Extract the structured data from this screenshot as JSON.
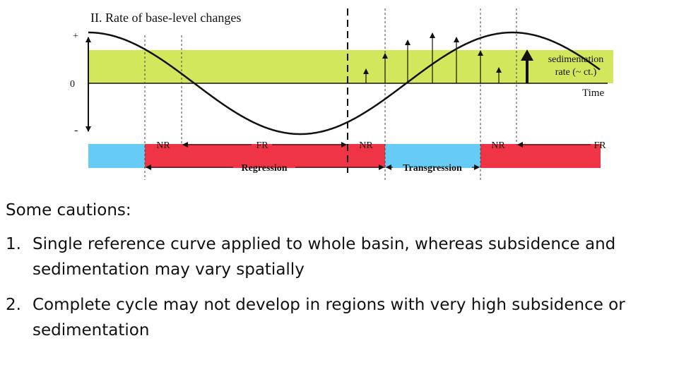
{
  "figure": {
    "title": "II. Rate of base-level changes",
    "axis": {
      "plus": "+",
      "zero": "0",
      "minus": "-",
      "time_label": "Time"
    },
    "sedimentation_label_line1": "sedimentation",
    "sedimentation_label_line2": "rate (~ ct.)",
    "bar_labels": {
      "nr1": "NR",
      "fr1": "FR",
      "nr2": "NR",
      "nr3": "NR",
      "fr2": "FR"
    },
    "phase_labels": {
      "regression": "Regression",
      "transgression": "Transgression"
    },
    "colors": {
      "sedimentation_band": "#d4e65c",
      "regression": "#ef3445",
      "transgression": "#66ccf5",
      "curve": "#111111"
    }
  },
  "cautions": {
    "heading": "Some cautions:",
    "items": [
      {
        "number": "1.",
        "text": "Single reference curve applied to whole basin, whereas subsidence and sedimentation may vary spatially"
      },
      {
        "number": "2.",
        "text": "Complete cycle may not develop in regions with very high subsidence or sedimentation"
      }
    ]
  }
}
